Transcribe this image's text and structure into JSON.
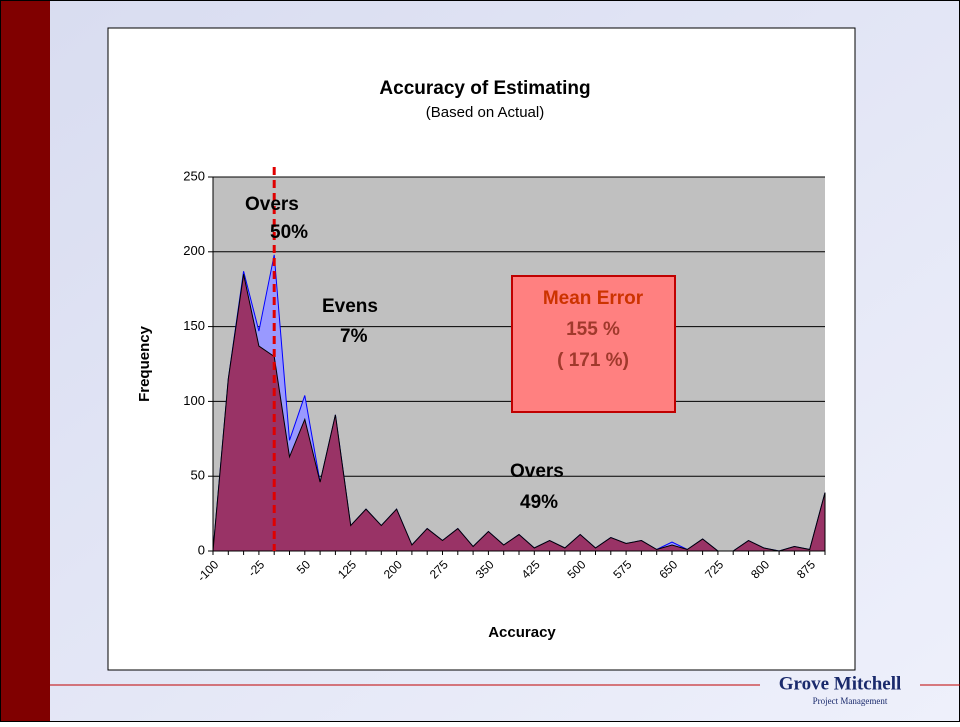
{
  "chart_data": {
    "type": "area",
    "title": "Accuracy of Estimating",
    "subtitle": "(Based on Actual)",
    "y_label": "Frequency",
    "x_label": "Accuracy",
    "categories": [
      -100,
      null,
      null,
      -25,
      null,
      null,
      50,
      null,
      null,
      125,
      null,
      null,
      200,
      null,
      null,
      275,
      null,
      null,
      350,
      null,
      null,
      425,
      null,
      null,
      500,
      null,
      null,
      575,
      null,
      null,
      650,
      null,
      null,
      725,
      null,
      null,
      800,
      null,
      null,
      875,
      null
    ],
    "series": [
      {
        "color": "#9999ff",
        "values": [
          0,
          115,
          187,
          147,
          198,
          74,
          104,
          46,
          91,
          17,
          28,
          17,
          28,
          4,
          15,
          7,
          15,
          3,
          13,
          4,
          11,
          2,
          7,
          2,
          11,
          2,
          9,
          5,
          7,
          1,
          6,
          1,
          8,
          0,
          0,
          7,
          2,
          0,
          3,
          1,
          39
        ]
      },
      {
        "color": "#993366",
        "values": [
          0,
          115,
          185,
          137,
          130,
          63,
          88,
          46,
          91,
          17,
          28,
          17,
          28,
          4,
          15,
          7,
          15,
          3,
          13,
          4,
          11,
          2,
          7,
          2,
          11,
          2,
          9,
          5,
          7,
          1,
          4,
          1,
          8,
          0,
          0,
          7,
          2,
          0,
          3,
          1,
          39
        ]
      }
    ],
    "ylim": [
      0,
      250
    ],
    "yticks": [
      0,
      50,
      100,
      150,
      200,
      250
    ],
    "grid": true,
    "reference_line_category": 4,
    "annotations": [
      {
        "lines": [
          "Overs",
          "50%"
        ]
      },
      {
        "lines": [
          "Evens",
          "7%"
        ]
      },
      {
        "lines": [
          "Overs",
          "49%"
        ]
      }
    ],
    "mean_error_box": {
      "lines": [
        "Mean Error",
        "155 %",
        "( 171 %)"
      ]
    }
  },
  "footer": {
    "company": "Grove Mitchell",
    "tagline": "Project Management"
  }
}
